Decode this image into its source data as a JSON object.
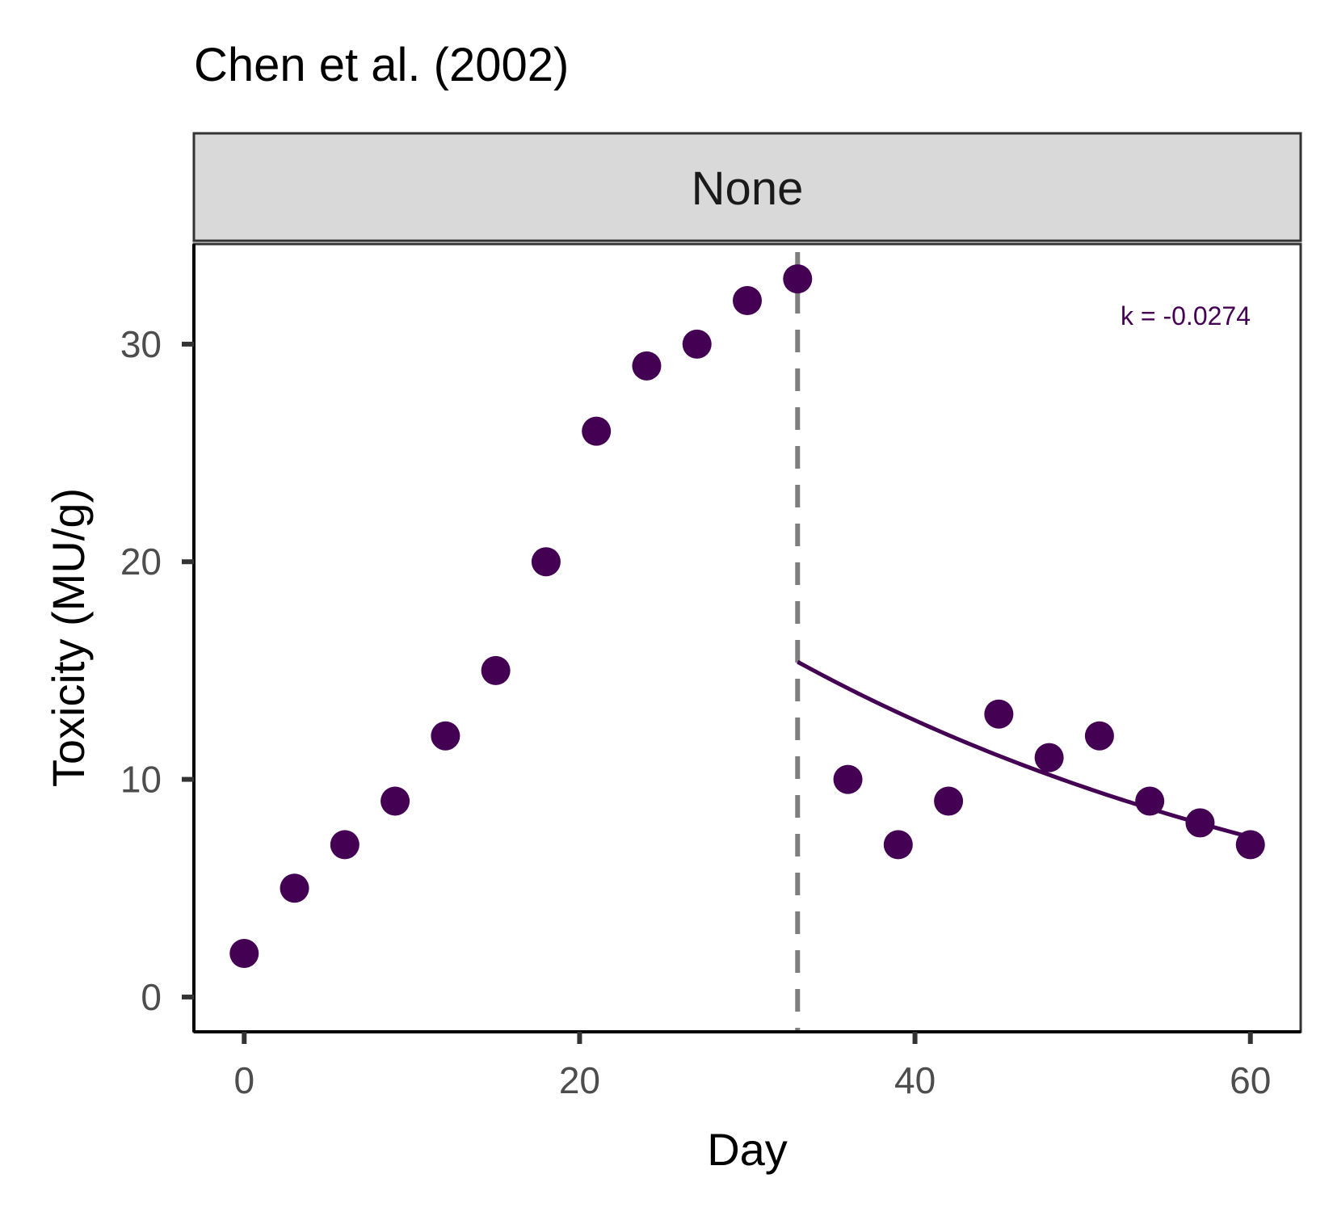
{
  "chart_data": {
    "type": "scatter",
    "title": "Chen et al. (2002)",
    "facet_label": "None",
    "xlabel": "Day",
    "ylabel": "Toxicity (MU/g)",
    "xlim": [
      -3,
      63
    ],
    "ylim": [
      -1.6,
      34.6
    ],
    "x_ticks": [
      0,
      20,
      40,
      60
    ],
    "y_ticks": [
      0,
      10,
      20,
      30
    ],
    "grid": false,
    "point_color": "#440154",
    "points": [
      {
        "x": 0,
        "y": 2
      },
      {
        "x": 3,
        "y": 5
      },
      {
        "x": 6,
        "y": 7
      },
      {
        "x": 9,
        "y": 9
      },
      {
        "x": 12,
        "y": 12
      },
      {
        "x": 15,
        "y": 15
      },
      {
        "x": 18,
        "y": 20
      },
      {
        "x": 21,
        "y": 26
      },
      {
        "x": 24,
        "y": 29
      },
      {
        "x": 27,
        "y": 30
      },
      {
        "x": 30,
        "y": 32
      },
      {
        "x": 33,
        "y": 33
      },
      {
        "x": 36,
        "y": 10
      },
      {
        "x": 39,
        "y": 7
      },
      {
        "x": 42,
        "y": 9
      },
      {
        "x": 45,
        "y": 13
      },
      {
        "x": 48,
        "y": 11
      },
      {
        "x": 51,
        "y": 12
      },
      {
        "x": 54,
        "y": 9
      },
      {
        "x": 57,
        "y": 8
      },
      {
        "x": 60,
        "y": 7
      }
    ],
    "vline": {
      "x": 33,
      "color": "#7f7f7f",
      "style": "dashed"
    },
    "fit": {
      "model": "exponential decay",
      "x_start": 33,
      "x_end": 60,
      "y_start": 15.4,
      "k": -0.0274,
      "color": "#440154"
    },
    "annotation": {
      "text": "k = -0.0274",
      "color": "#440154"
    }
  }
}
